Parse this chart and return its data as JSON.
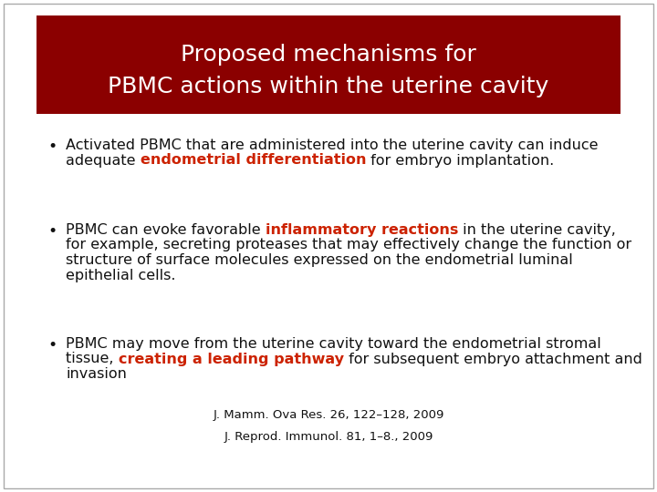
{
  "title_line1": "Proposed mechanisms for",
  "title_line2": "PBMC actions within the uterine cavity",
  "title_bg_color": "#8B0000",
  "title_text_color": "#FFFFFF",
  "bg_color": "#FFFFFF",
  "border_color": "#AAAAAA",
  "red_color": "#CC2200",
  "black_color": "#111111",
  "ref1": "J. Mamm. Ova Res. 26, 122–128, 2009",
  "ref2": "J. Reprod. Immunol. 81, 1–8., 2009",
  "title_fontsize": 18,
  "body_fontsize": 11.5,
  "ref_fontsize": 9.5
}
